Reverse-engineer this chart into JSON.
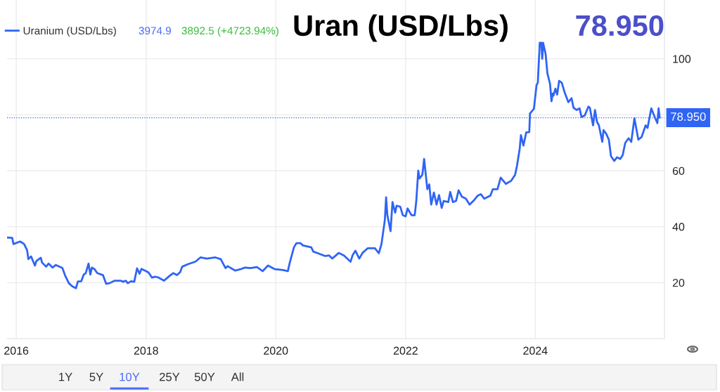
{
  "chart_data": {
    "type": "line",
    "title": "Uran (USD/Lbs)",
    "annotations": [
      "3974.9",
      "3892.5 (+4723.94%)",
      "78.950",
      "1Y",
      "5Y",
      "10Y",
      "25Y",
      "50Y",
      "All"
    ],
    "x": [
      "2015-11-14",
      "2015-12-09",
      "2015-12-16",
      "2016-01-23",
      "2016-02-14",
      "2016-03-02",
      "2016-03-09",
      "2016-03-24",
      "2016-04-15",
      "2016-04-23",
      "2016-05-18",
      "2016-05-25",
      "2016-06-17",
      "2016-07-01",
      "2016-07-23",
      "2016-08-11",
      "2016-09-17",
      "2016-10-01",
      "2016-10-23",
      "2016-11-11",
      "2016-12-02",
      "2016-12-13",
      "2017-01-01",
      "2017-01-15",
      "2017-01-26",
      "2017-02-11",
      "2017-02-21",
      "2017-03-02",
      "2017-03-17",
      "2017-04-01",
      "2017-05-03",
      "2017-05-21",
      "2017-06-09",
      "2017-07-08",
      "2017-08-11",
      "2017-08-25",
      "2017-09-09",
      "2017-09-20",
      "2017-10-08",
      "2017-10-26",
      "2017-11-11",
      "2017-11-25",
      "2017-12-06",
      "2018-01-01",
      "2018-01-15",
      "2018-02-03",
      "2018-02-21",
      "2018-03-09",
      "2018-04-12",
      "2018-05-11",
      "2018-06-02",
      "2018-06-24",
      "2018-07-12",
      "2018-07-23",
      "2018-08-25",
      "2018-10-05",
      "2018-11-03",
      "2018-12-09",
      "2019-01-26",
      "2019-02-25",
      "2019-03-24",
      "2019-04-05",
      "2019-05-18",
      "2019-06-17",
      "2019-07-12",
      "2019-08-11",
      "2019-09-17",
      "2019-10-19",
      "2019-11-18",
      "2019-12-27",
      "2020-02-11",
      "2020-03-09",
      "2020-03-20",
      "2020-04-12",
      "2020-04-26",
      "2020-05-18",
      "2020-06-02",
      "2020-07-19",
      "2020-07-30",
      "2020-08-25",
      "2020-10-05",
      "2020-10-28",
      "2020-11-14",
      "2020-12-20",
      "2021-01-19",
      "2021-02-25",
      "2021-03-09",
      "2021-03-24",
      "2021-04-15",
      "2021-05-03",
      "2021-06-02",
      "2021-07-12",
      "2021-08-03",
      "2021-08-18",
      "2021-09-06",
      "2021-09-13",
      "2021-09-20",
      "2021-10-08",
      "2021-10-19",
      "2021-11-03",
      "2021-11-11",
      "2021-12-02",
      "2021-12-16",
      "2022-01-01",
      "2022-01-12",
      "2022-02-03",
      "2022-02-21",
      "2022-03-02",
      "2022-03-13",
      "2022-03-20",
      "2022-04-05",
      "2022-04-15",
      "2022-05-03",
      "2022-05-14",
      "2022-05-25",
      "2022-06-09",
      "2022-06-24",
      "2022-07-08",
      "2022-07-23",
      "2022-08-03",
      "2022-08-29",
      "2022-09-09",
      "2022-09-24",
      "2022-10-12",
      "2022-10-26",
      "2022-11-14",
      "2022-12-06",
      "2022-12-27",
      "2023-01-23",
      "2023-02-11",
      "2023-02-28",
      "2023-03-20",
      "2023-04-23",
      "2023-05-07",
      "2023-06-02",
      "2023-06-20",
      "2023-07-19",
      "2023-08-18",
      "2023-09-09",
      "2023-09-20",
      "2023-10-05",
      "2023-10-12",
      "2023-10-26",
      "2023-11-11",
      "2023-11-28",
      "2023-12-02",
      "2023-12-24",
      "2024-01-08",
      "2024-01-15",
      "2024-01-26",
      "2024-02-04",
      "2024-02-09",
      "2024-02-14",
      "2024-02-28",
      "2024-03-09",
      "2024-03-24",
      "2024-04-01",
      "2024-04-08",
      "2024-04-12",
      "2024-04-23",
      "2024-05-03",
      "2024-05-14",
      "2024-05-29",
      "2024-06-13",
      "2024-07-05",
      "2024-07-23",
      "2024-08-03",
      "2024-08-21",
      "2024-09-06",
      "2024-09-17",
      "2024-10-05",
      "2024-10-26",
      "2024-11-03",
      "2024-11-21",
      "2024-12-02",
      "2024-12-13",
      "2024-12-24",
      "2025-01-12",
      "2025-01-19",
      "2025-02-03",
      "2025-02-18",
      "2025-03-02",
      "2025-03-20",
      "2025-04-05",
      "2025-04-23",
      "2025-05-07",
      "2025-05-21",
      "2025-06-09",
      "2025-06-24",
      "2025-07-12",
      "2025-08-03",
      "2025-08-21",
      "2025-09-13",
      "2025-09-24",
      "2025-10-15",
      "2025-11-03",
      "2025-11-18",
      "2025-11-25",
      "2025-12-01"
    ],
    "series": [
      {
        "name": "Uranium (USD/Lbs)",
        "color": "#2f64f5",
        "values": [
          36.1,
          36.0,
          33.8,
          34.7,
          33.8,
          31.6,
          28.4,
          29.4,
          26.1,
          27.7,
          28.9,
          27.2,
          25.7,
          26.8,
          25.4,
          26.3,
          25.2,
          22.7,
          19.8,
          18.7,
          18.0,
          20.4,
          20.5,
          22.9,
          23.4,
          26.8,
          22.9,
          25.4,
          24.8,
          23.4,
          22.7,
          19.6,
          19.8,
          20.7,
          20.7,
          20.3,
          20.7,
          19.8,
          20.5,
          20.3,
          25.1,
          23.2,
          24.9,
          24.1,
          23.6,
          21.8,
          22.1,
          21.9,
          20.7,
          22.3,
          23.4,
          22.7,
          23.8,
          25.7,
          26.6,
          27.5,
          29.0,
          28.6,
          29.0,
          28.4,
          25.2,
          25.9,
          24.3,
          24.8,
          25.4,
          25.2,
          25.6,
          24.1,
          26.1,
          24.8,
          24.5,
          24.1,
          27.2,
          32.6,
          34.1,
          34.1,
          33.3,
          32.6,
          31.1,
          30.5,
          29.5,
          29.7,
          28.6,
          30.6,
          29.7,
          27.5,
          29.9,
          31.4,
          28.6,
          30.6,
          32.3,
          32.3,
          30.5,
          33.8,
          42.4,
          50.5,
          44.1,
          38.4,
          48.8,
          45.0,
          47.5,
          47.1,
          44.1,
          43.7,
          46.5,
          44.1,
          44.1,
          49.2,
          60.0,
          57.2,
          58.5,
          64.2,
          53.4,
          55.1,
          47.9,
          52.2,
          47.9,
          51.3,
          46.7,
          49.2,
          48.8,
          52.4,
          48.8,
          49.2,
          53.0,
          50.7,
          50.0,
          47.9,
          49.6,
          51.1,
          51.6,
          50.0,
          51.1,
          53.4,
          53.4,
          57.5,
          55.3,
          56.4,
          58.5,
          61.8,
          67.8,
          72.7,
          69.0,
          73.7,
          73.8,
          80.4,
          82.1,
          90.6,
          91.4,
          105.7,
          105.7,
          100.0,
          105.7,
          101.7,
          94.8,
          91.0,
          84.8,
          87.6,
          86.8,
          89.3,
          87.2,
          92.1,
          91.4,
          88.2,
          84.5,
          85.9,
          82.5,
          81.7,
          82.3,
          79.2,
          79.7,
          82.9,
          82.5,
          76.2,
          81.7,
          77.5,
          76.2,
          70.3,
          74.5,
          73.2,
          71.1,
          65.2,
          63.5,
          64.8,
          64.2,
          65.6,
          69.9,
          71.6,
          70.3,
          78.7,
          71.1,
          72.0,
          76.2,
          75.3,
          82.3,
          79.2,
          77.0,
          82.3,
          79.0
        ]
      }
    ],
    "xlim": [
      "2015-11-10",
      "2025-12-28"
    ],
    "xticks": [
      {
        "value": "2016-01-01",
        "label": "2016"
      },
      {
        "value": "2018-01-01",
        "label": "2018"
      },
      {
        "value": "2020-01-01",
        "label": "2020"
      },
      {
        "value": "2022-01-01",
        "label": "2022"
      },
      {
        "value": "2024-01-01",
        "label": "2024"
      }
    ],
    "ylim": [
      0,
      121
    ],
    "yticks": [
      20,
      40,
      60,
      {
        "value": 80,
        "label": null
      },
      100
    ],
    "ref_lines": [
      {
        "axis": "y",
        "value": 78.95,
        "label": "78.950",
        "color": "#2f64f5",
        "line_style": "dotted"
      }
    ],
    "grid": true,
    "legend": "top left",
    "line_style": "solid",
    "marker": "none"
  }
}
